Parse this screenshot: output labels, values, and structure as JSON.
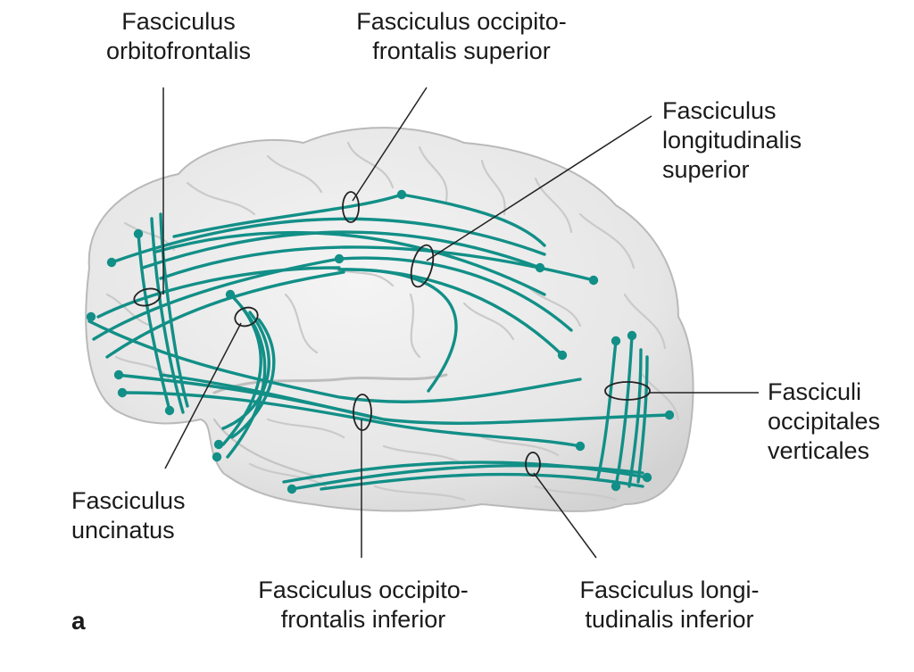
{
  "colors": {
    "fiber": "#128f87",
    "brain_fill": "#e9e9e9",
    "brain_outline": "#b9b9b9",
    "sulcus": "#c9c9c9",
    "leader": "#222222"
  },
  "labels": {
    "orbitofrontalis": [
      "Fasciculus",
      "orbitofrontalis"
    ],
    "occ_front_sup": [
      "Fasciculus occipito-",
      "frontalis superior"
    ],
    "long_sup": [
      "Fasciculus",
      "longitudinalis",
      "superior"
    ],
    "occ_vert": [
      "Fasciculi",
      "occipitales",
      "verticales"
    ],
    "uncinatus": [
      "Fasciculus",
      "uncinatus"
    ],
    "occ_front_inf": [
      "Fasciculus occipito-",
      "frontalis inferior"
    ],
    "long_inf": [
      "Fasciculus longi-",
      "tudinalis inferior"
    ]
  },
  "panel_letter": "a"
}
